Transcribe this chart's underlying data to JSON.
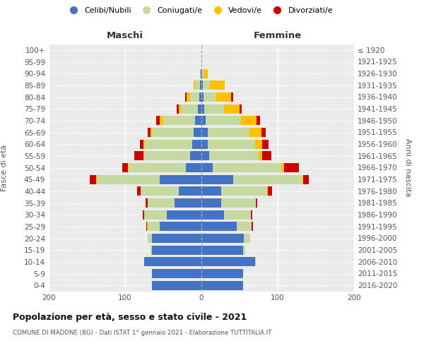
{
  "age_groups": [
    "0-4",
    "5-9",
    "10-14",
    "15-19",
    "20-24",
    "25-29",
    "30-34",
    "35-39",
    "40-44",
    "45-49",
    "50-54",
    "55-59",
    "60-64",
    "65-69",
    "70-74",
    "75-79",
    "80-84",
    "85-89",
    "90-94",
    "95-99",
    "100+"
  ],
  "birth_years": [
    "2016-2020",
    "2011-2015",
    "2006-2010",
    "2001-2005",
    "1996-2000",
    "1991-1995",
    "1986-1990",
    "1981-1985",
    "1976-1980",
    "1971-1975",
    "1966-1970",
    "1961-1965",
    "1956-1960",
    "1951-1955",
    "1946-1950",
    "1941-1945",
    "1936-1940",
    "1931-1935",
    "1926-1930",
    "1921-1925",
    "≤ 1920"
  ],
  "maschi": {
    "celibi": [
      65,
      65,
      75,
      65,
      65,
      55,
      45,
      35,
      30,
      55,
      20,
      15,
      12,
      10,
      8,
      5,
      3,
      2,
      1,
      0,
      0
    ],
    "coniugati": [
      0,
      0,
      0,
      2,
      5,
      15,
      30,
      35,
      50,
      82,
      75,
      60,
      62,
      55,
      42,
      22,
      12,
      6,
      1,
      0,
      0
    ],
    "vedovi": [
      0,
      0,
      0,
      0,
      0,
      1,
      0,
      0,
      0,
      1,
      1,
      1,
      2,
      2,
      5,
      3,
      4,
      2,
      0,
      0,
      0
    ],
    "divorziati": [
      0,
      0,
      0,
      0,
      0,
      1,
      2,
      3,
      4,
      8,
      8,
      12,
      5,
      3,
      4,
      2,
      2,
      0,
      0,
      0,
      0
    ]
  },
  "femmine": {
    "nubili": [
      55,
      55,
      70,
      55,
      56,
      46,
      30,
      26,
      26,
      42,
      15,
      10,
      8,
      8,
      6,
      4,
      3,
      2,
      1,
      0,
      0
    ],
    "coniugate": [
      0,
      0,
      1,
      2,
      8,
      20,
      35,
      45,
      60,
      90,
      90,
      65,
      62,
      55,
      46,
      26,
      16,
      9,
      2,
      1,
      0
    ],
    "vedove": [
      0,
      0,
      0,
      0,
      0,
      0,
      0,
      0,
      1,
      1,
      3,
      5,
      10,
      16,
      20,
      20,
      20,
      20,
      5,
      0,
      0
    ],
    "divorziate": [
      0,
      0,
      0,
      0,
      0,
      2,
      2,
      2,
      6,
      8,
      20,
      12,
      8,
      5,
      5,
      3,
      3,
      0,
      0,
      0,
      0
    ]
  },
  "colors": {
    "celibi": "#4472c4",
    "coniugati": "#c5d9a0",
    "vedovi": "#ffc000",
    "divorziati": "#cc0000"
  },
  "legend_labels": [
    "Celibi/Nubili",
    "Coniugati/e",
    "Vedovi/e",
    "Divorziati/e"
  ],
  "title": "Popolazione per età, sesso e stato civile - 2021",
  "subtitle": "COMUNE DI MADONE (BG) - Dati ISTAT 1° gennaio 2021 - Elaborazione TUTTITALIA.IT",
  "header_maschi": "Maschi",
  "header_femmine": "Femmine",
  "ylabel_left": "Fasce di età",
  "ylabel_right": "Anni di nascita",
  "xlim": 200,
  "bg_color": "#ffffff",
  "plot_bg": "#ebebeb"
}
